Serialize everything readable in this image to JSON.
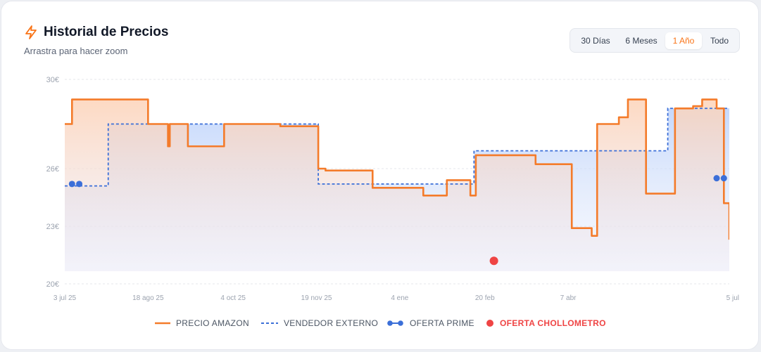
{
  "header": {
    "title": "Historial de Precios",
    "subtitle": "Arrastra para hacer zoom",
    "icon": "lightning-icon",
    "accent": "#f97316"
  },
  "range_selector": {
    "options": [
      "30 Días",
      "6 Meses",
      "1 Año",
      "Todo"
    ],
    "selected": "1 Año"
  },
  "legend": {
    "amazon": "PRECIO AMAZON",
    "vendor": "VENDEDOR EXTERNO",
    "prime": "OFERTA PRIME",
    "chollo": "OFERTA CHOLLOMETRO"
  },
  "chart_data": {
    "type": "line",
    "y_ticks": [
      {
        "value": 30,
        "label": "30€"
      },
      {
        "value": 26,
        "label": "26€"
      },
      {
        "value": 23,
        "label": "23€"
      },
      {
        "value": 20,
        "label": "20€"
      }
    ],
    "x_ticks": [
      {
        "date": "2025-07-03",
        "label": "3 jul 25"
      },
      {
        "date": "2025-08-18",
        "label": "18 ago 25"
      },
      {
        "date": "2025-10-04",
        "label": "4 oct 25"
      },
      {
        "date": "2025-11-19",
        "label": "19 nov 25"
      },
      {
        "date": "2026-01-04",
        "label": "4 ene"
      },
      {
        "date": "2026-02-20",
        "label": "20 feb"
      },
      {
        "date": "2026-04-07",
        "label": "7 abr"
      },
      {
        "date": "2026-07-05",
        "label": "5 jul"
      }
    ],
    "x_range": [
      "2025-07-03",
      "2026-07-05"
    ],
    "y_range": [
      20,
      30
    ],
    "grid": true,
    "legend_position": "bottom",
    "series": [
      {
        "name": "PRECIO AMAZON",
        "color": "#f47b2a",
        "step": true,
        "points": [
          [
            "2025-07-03",
            28.0
          ],
          [
            "2025-07-07",
            29.1
          ],
          [
            "2025-08-18",
            28.0
          ],
          [
            "2025-08-29",
            27.0
          ],
          [
            "2025-08-30",
            28.0
          ],
          [
            "2025-09-09",
            27.0
          ],
          [
            "2025-09-29",
            28.0
          ],
          [
            "2025-10-30",
            27.9
          ],
          [
            "2025-11-20",
            26.0
          ],
          [
            "2025-11-24",
            25.9
          ],
          [
            "2025-12-20",
            25.0
          ],
          [
            "2026-01-17",
            24.6
          ],
          [
            "2026-01-30",
            25.4
          ],
          [
            "2026-02-12",
            24.6
          ],
          [
            "2026-02-15",
            26.6
          ],
          [
            "2026-03-10",
            26.6
          ],
          [
            "2026-03-20",
            26.2
          ],
          [
            "2026-03-30",
            26.2
          ],
          [
            "2026-04-09",
            22.9
          ],
          [
            "2026-04-20",
            22.5
          ],
          [
            "2026-04-23",
            28.0
          ],
          [
            "2026-05-05",
            28.3
          ],
          [
            "2026-05-10",
            29.1
          ],
          [
            "2026-05-20",
            24.7
          ],
          [
            "2026-06-05",
            28.7
          ],
          [
            "2026-06-15",
            28.8
          ],
          [
            "2026-06-20",
            29.1
          ],
          [
            "2026-06-28",
            28.7
          ],
          [
            "2026-07-02",
            24.2
          ],
          [
            "2026-07-05",
            22.3
          ]
        ]
      },
      {
        "name": "VENDEDOR EXTERNO",
        "color": "#3b6fd8",
        "step": true,
        "points": [
          [
            "2025-07-03",
            25.1
          ],
          [
            "2025-07-27",
            28.0
          ],
          [
            "2025-11-20",
            25.2
          ],
          [
            "2026-02-14",
            26.8
          ],
          [
            "2026-06-01",
            28.7
          ],
          [
            "2026-07-05",
            28.7
          ]
        ]
      }
    ],
    "markers": [
      {
        "series": "OFERTA PRIME",
        "color": "#3b6fd8",
        "points": [
          [
            "2025-07-07",
            25.2
          ],
          [
            "2025-07-11",
            25.2
          ],
          [
            "2026-06-28",
            25.5
          ],
          [
            "2026-07-02",
            25.5
          ]
        ]
      },
      {
        "series": "OFERTA CHOLLOMETRO",
        "color": "#ef4444",
        "points": [
          [
            "2026-02-25",
            21.2
          ]
        ]
      }
    ]
  }
}
